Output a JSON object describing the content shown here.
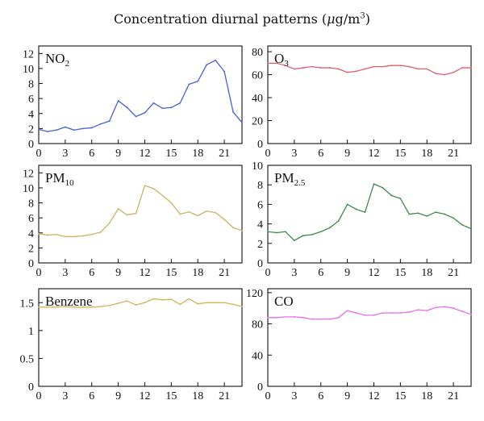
{
  "title": {
    "prefix": "Concentration diurnal patterns (",
    "unit_mu": "μ",
    "unit_g": "g/m",
    "unit_sup": "3",
    "suffix": ")"
  },
  "chart_data": [
    {
      "type": "line",
      "label_main": "NO",
      "label_sub": "2",
      "color": "#4a5fd4",
      "ylim": [
        0,
        13
      ],
      "yticks": [
        0,
        2,
        4,
        6,
        8,
        10,
        12
      ],
      "xlim": [
        0,
        23
      ],
      "xticks": [
        0,
        3,
        6,
        9,
        12,
        15,
        18,
        21
      ],
      "x": [
        0,
        1,
        2,
        3,
        4,
        5,
        6,
        7,
        8,
        9,
        10,
        11,
        12,
        13,
        14,
        15,
        16,
        17,
        18,
        19,
        20,
        21,
        22,
        23
      ],
      "values": [
        1.9,
        1.6,
        1.8,
        2.2,
        1.8,
        2.0,
        2.1,
        2.6,
        3.0,
        5.7,
        4.8,
        3.6,
        4.1,
        5.4,
        4.7,
        4.8,
        5.4,
        7.9,
        8.3,
        10.5,
        11.1,
        9.6,
        4.2,
        2.8
      ]
    },
    {
      "type": "line",
      "label_main": "O",
      "label_sub": "3",
      "color": "#e0606a",
      "ylim": [
        0,
        85
      ],
      "yticks": [
        0,
        20,
        40,
        60,
        80
      ],
      "xlim": [
        0,
        23
      ],
      "xticks": [
        0,
        3,
        6,
        9,
        12,
        15,
        18,
        21
      ],
      "x": [
        0,
        1,
        2,
        3,
        4,
        5,
        6,
        7,
        8,
        9,
        10,
        11,
        12,
        13,
        14,
        15,
        16,
        17,
        18,
        19,
        20,
        21,
        22,
        23
      ],
      "values": [
        70,
        70,
        68,
        65,
        66,
        67,
        66,
        66,
        65,
        62,
        63,
        65,
        67,
        67,
        68,
        68,
        67,
        65,
        65,
        61,
        60,
        62,
        66,
        66
      ]
    },
    {
      "type": "line",
      "label_main": "PM",
      "label_sub": "10",
      "color": "#c9b461",
      "ylim": [
        0,
        13
      ],
      "yticks": [
        0,
        2,
        4,
        6,
        8,
        10,
        12
      ],
      "xlim": [
        0,
        23
      ],
      "xticks": [
        0,
        3,
        6,
        9,
        12,
        15,
        18,
        21
      ],
      "x": [
        0,
        1,
        2,
        3,
        4,
        5,
        6,
        7,
        8,
        9,
        10,
        11,
        12,
        13,
        14,
        15,
        16,
        17,
        18,
        19,
        20,
        21,
        22,
        23
      ],
      "values": [
        3.9,
        3.7,
        3.8,
        3.5,
        3.5,
        3.6,
        3.8,
        4.1,
        5.3,
        7.2,
        6.4,
        6.6,
        10.3,
        9.9,
        9.0,
        8.0,
        6.5,
        6.8,
        6.3,
        6.9,
        6.7,
        5.8,
        4.7,
        4.3
      ]
    },
    {
      "type": "line",
      "label_main": "PM",
      "label_sub": "2.5",
      "color": "#3e8a4c",
      "ylim": [
        0,
        10
      ],
      "yticks": [
        0,
        2,
        4,
        6,
        8,
        10
      ],
      "xlim": [
        0,
        23
      ],
      "xticks": [
        0,
        3,
        6,
        9,
        12,
        15,
        18,
        21
      ],
      "x": [
        0,
        1,
        2,
        3,
        4,
        5,
        6,
        7,
        8,
        9,
        10,
        11,
        12,
        13,
        14,
        15,
        16,
        17,
        18,
        19,
        20,
        21,
        22,
        23
      ],
      "values": [
        3.2,
        3.1,
        3.2,
        2.3,
        2.8,
        2.9,
        3.2,
        3.6,
        4.3,
        6.0,
        5.5,
        5.2,
        8.1,
        7.7,
        6.9,
        6.6,
        5.0,
        5.1,
        4.8,
        5.2,
        5.0,
        4.6,
        3.9,
        3.5
      ]
    },
    {
      "type": "line",
      "label_main": "Benzene",
      "label_sub": "",
      "color": "#d4b257",
      "ylim": [
        0,
        1.75
      ],
      "yticks": [
        0,
        0.5,
        1,
        1.5
      ],
      "ytick_labels": [
        "0",
        "0.5",
        "1",
        "1.5"
      ],
      "xlim": [
        0,
        23
      ],
      "xticks": [
        0,
        3,
        6,
        9,
        12,
        15,
        18,
        21
      ],
      "x": [
        0,
        1,
        2,
        3,
        4,
        5,
        6,
        7,
        8,
        9,
        10,
        11,
        12,
        13,
        14,
        15,
        16,
        17,
        18,
        19,
        20,
        21,
        22,
        23
      ],
      "values": [
        1.42,
        1.42,
        1.42,
        1.43,
        1.42,
        1.42,
        1.42,
        1.43,
        1.45,
        1.49,
        1.53,
        1.46,
        1.5,
        1.57,
        1.55,
        1.56,
        1.47,
        1.57,
        1.48,
        1.5,
        1.5,
        1.5,
        1.47,
        1.43
      ]
    },
    {
      "type": "line",
      "label_main": "CO",
      "label_sub": "",
      "color": "#e96ee9",
      "ylim": [
        0,
        125
      ],
      "yticks": [
        0,
        40,
        80,
        120
      ],
      "xlim": [
        0,
        23
      ],
      "xticks": [
        0,
        3,
        6,
        9,
        12,
        15,
        18,
        21
      ],
      "x": [
        0,
        1,
        2,
        3,
        4,
        5,
        6,
        7,
        8,
        9,
        10,
        11,
        12,
        13,
        14,
        15,
        16,
        17,
        18,
        19,
        20,
        21,
        22,
        23
      ],
      "values": [
        88,
        88,
        89,
        89,
        88,
        86,
        86,
        86,
        88,
        97,
        94,
        91,
        91,
        94,
        94,
        94,
        95,
        98,
        97,
        101,
        102,
        100,
        96,
        92
      ]
    }
  ]
}
